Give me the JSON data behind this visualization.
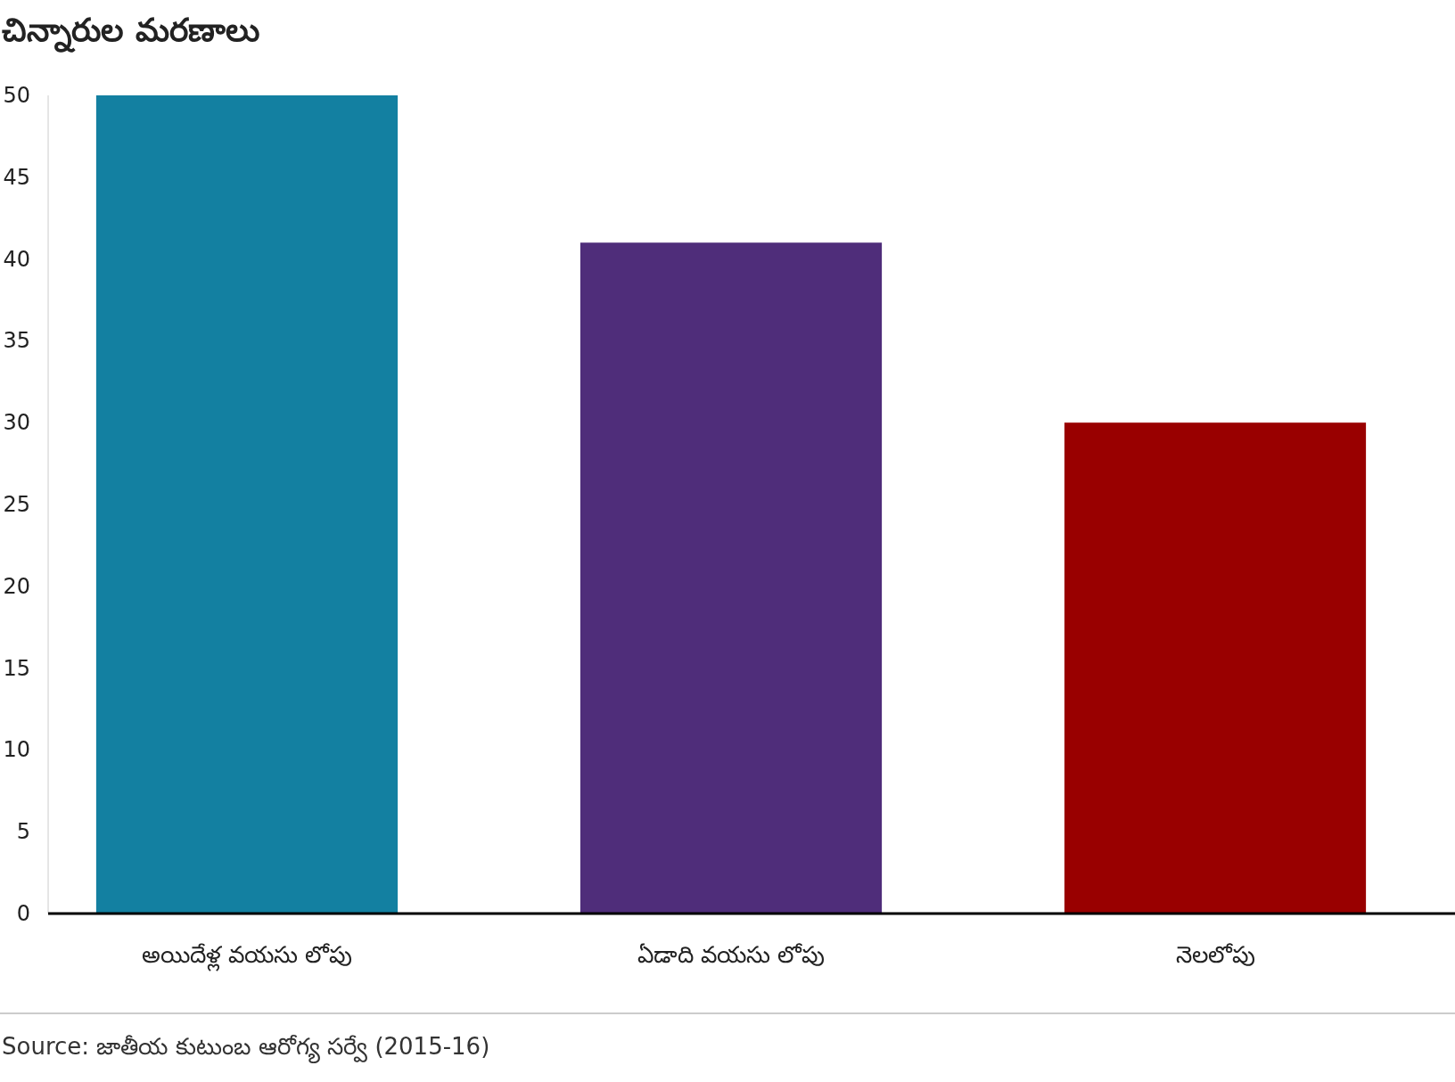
{
  "chart_data": {
    "type": "bar",
    "title": "చిన్నారుల మరణాలు",
    "categories": [
      "అయిదేళ్ల వయసు లోపు",
      "ఏడాది వయసు లోపు",
      "నెలలోపు"
    ],
    "values": [
      50,
      41,
      30
    ],
    "colors": [
      "#1380a1",
      "#4f2d7a",
      "#990000"
    ],
    "ylim": [
      0,
      50
    ],
    "yticks": [
      0,
      5,
      10,
      15,
      20,
      25,
      30,
      35,
      40,
      45,
      50
    ],
    "grid": false,
    "legend": false,
    "annotations": [
      "Source: జాతీయ కుటుంబ ఆరోగ్య సర్వే (2015-16)"
    ]
  }
}
